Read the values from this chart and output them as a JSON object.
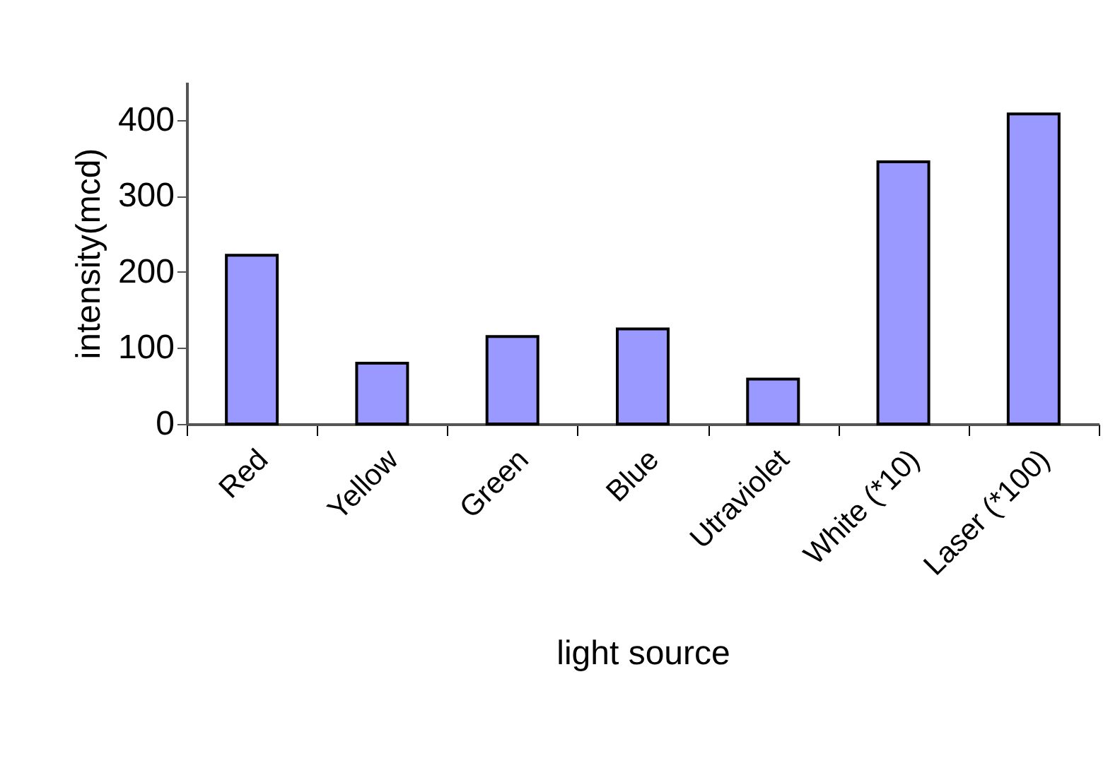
{
  "chart_data": {
    "type": "bar",
    "xlabel": "light source",
    "ylabel": "intensity(mcd)",
    "categories": [
      "Red",
      "Yellow",
      "Green",
      "Blue",
      "Utraviolet",
      "White (*10)",
      "Laser (*100)"
    ],
    "values": [
      222,
      80,
      115,
      125,
      59,
      345,
      408
    ],
    "color": "#9999ff",
    "ylim": [
      0,
      450
    ],
    "yticks": [
      0,
      100,
      200,
      300,
      400
    ],
    "grid": false
  }
}
